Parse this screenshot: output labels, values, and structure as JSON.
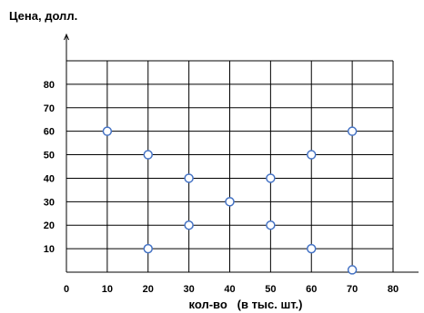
{
  "chart_data": {
    "type": "scatter",
    "title": "",
    "ylabel": "Цена, долл.",
    "xlabel": "кол-во   (в тыс. шт.)",
    "x_ticks": [
      "0",
      "10",
      "20",
      "30",
      "40",
      "50",
      "60",
      "70",
      "80"
    ],
    "y_ticks": [
      "10",
      "20",
      "30",
      "40",
      "50",
      "60",
      "70",
      "80"
    ],
    "xlim": [
      0,
      80
    ],
    "ylim": [
      0,
      90
    ],
    "grid": true,
    "legend": "none",
    "marker_color": "#4472C4",
    "grid_color": "#000000",
    "points": [
      {
        "x": 10,
        "y": 60
      },
      {
        "x": 20,
        "y": 50
      },
      {
        "x": 20,
        "y": 10
      },
      {
        "x": 30,
        "y": 40
      },
      {
        "x": 30,
        "y": 20
      },
      {
        "x": 40,
        "y": 30
      },
      {
        "x": 50,
        "y": 40
      },
      {
        "x": 50,
        "y": 20
      },
      {
        "x": 60,
        "y": 50
      },
      {
        "x": 60,
        "y": 10
      },
      {
        "x": 70,
        "y": 60
      },
      {
        "x": 70,
        "y": 1
      }
    ]
  }
}
